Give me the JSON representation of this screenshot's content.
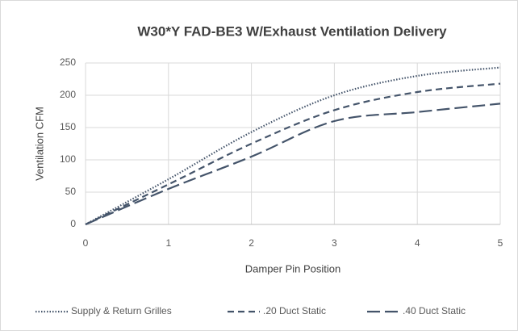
{
  "chart_data": {
    "type": "line",
    "title": "W30*Y FAD-BE3 W/Exhaust Ventilation Delivery",
    "x_label": "Damper Pin Position",
    "y_label": "Ventilation CFM",
    "x": [
      0,
      1,
      2,
      3,
      4,
      5
    ],
    "series": [
      {
        "name": "Supply & Return Grilles",
        "color": "#44546a",
        "dash": "dotted",
        "values": [
          0,
          70,
          143,
          200,
          230,
          243
        ]
      },
      {
        "name": ".20 Duct Static",
        "color": "#44546a",
        "dash": "dashed",
        "values": [
          0,
          62,
          125,
          177,
          205,
          218
        ]
      },
      {
        "name": ".40 Duct Static",
        "color": "#44546a",
        "dash": "long-dashed",
        "values": [
          0,
          55,
          105,
          160,
          174,
          187
        ]
      }
    ],
    "xlim": [
      0,
      5
    ],
    "xticks": [
      0,
      1,
      2,
      3,
      4,
      5
    ],
    "ylim": [
      0,
      250
    ],
    "yticks": [
      0,
      50,
      100,
      150,
      200,
      250
    ],
    "grid": true,
    "legend": "bottom"
  }
}
